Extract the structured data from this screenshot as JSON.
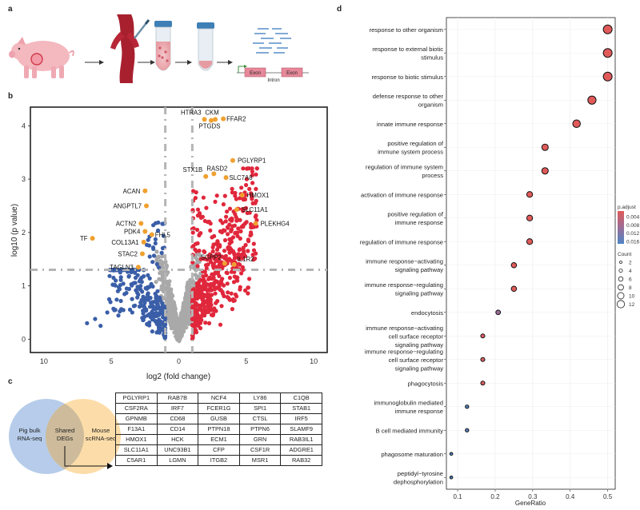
{
  "panels": {
    "a": "a",
    "b": "b",
    "c": "c",
    "d": "d"
  },
  "workflow": {
    "exon_1": "Exon",
    "exon_2": "Exon",
    "intron": "Intron"
  },
  "venn": {
    "left": [
      "Pig bulk",
      "RNA-seq"
    ],
    "right": [
      "Mouse",
      "scRNA-seq"
    ],
    "center": [
      "Shared",
      "DEGs"
    ]
  },
  "gene_table": [
    [
      "PGLYRP1",
      "RAB7B",
      "NCF4",
      "LY86",
      "C1QB"
    ],
    [
      "CSF2RA",
      "IRF7",
      "FCER1G",
      "SPI1",
      "STAB1"
    ],
    [
      "GPNMB",
      "CD68",
      "GUSB",
      "CTSL",
      "IRF5"
    ],
    [
      "F13A1",
      "CD14",
      "PTPN18",
      "PTPN6",
      "SLAMF9"
    ],
    [
      "HMOX1",
      "HCK",
      "ECM1",
      "GRN",
      "RAB3IL1"
    ],
    [
      "SLC11A1",
      "UNC93B1",
      "CFP",
      "CSF1R",
      "ADGRE1"
    ],
    [
      "C5AR1",
      "LGMN",
      "ITGB2",
      "MSR1",
      "RAB32"
    ]
  ],
  "colors": {
    "down": "#3a5ea8",
    "up": "#e0273b",
    "ns": "#a9a9a9",
    "label": "#f0a030",
    "threshold": "#b5b5b5",
    "low_padj": "#e05a5a",
    "high_padj": "#4d85c6"
  },
  "chart_data": [
    {
      "type": "scatter",
      "subtype": "volcano",
      "xlabel": "log2 (fold change)",
      "ylabel": "log10 (p value)",
      "xlim": [
        -11,
        11
      ],
      "ylim": [
        -0.25,
        4.35
      ],
      "xtick_labels": [
        "10",
        "5",
        "0",
        "5",
        "10"
      ],
      "xticks": [
        -10,
        -5,
        0,
        5,
        10
      ],
      "yticks": [
        0,
        1,
        2,
        3,
        4
      ],
      "threshold_x": [
        -1,
        1
      ],
      "threshold_y": 1.3,
      "labeled_genes": [
        {
          "gene": "HTRA3",
          "x": 1.9,
          "y": 4.12
        },
        {
          "gene": "CKM",
          "x": 2.7,
          "y": 4.12
        },
        {
          "gene": "FFAR2",
          "x": 3.3,
          "y": 4.13
        },
        {
          "gene": "PTGDS",
          "x": 2.4,
          "y": 4.1
        },
        {
          "gene": "PGLYRP1",
          "x": 4.0,
          "y": 3.35
        },
        {
          "gene": "STX1B",
          "x": 2.0,
          "y": 3.05
        },
        {
          "gene": "RASD2",
          "x": 2.6,
          "y": 3.1
        },
        {
          "gene": "SLC7A8",
          "x": 3.5,
          "y": 3.03
        },
        {
          "gene": "HMOX1",
          "x": 4.7,
          "y": 2.7
        },
        {
          "gene": "SLC11A1",
          "x": 4.3,
          "y": 2.43
        },
        {
          "gene": "PLEKHG4",
          "x": 5.7,
          "y": 2.17
        },
        {
          "gene": "ACAN",
          "x": -2.5,
          "y": 2.78
        },
        {
          "gene": "ANGPTL7",
          "x": -2.4,
          "y": 2.5
        },
        {
          "gene": "ACTN2",
          "x": -2.8,
          "y": 2.17
        },
        {
          "gene": "PDK4",
          "x": -2.5,
          "y": 2.02
        },
        {
          "gene": "FHL5",
          "x": -2.0,
          "y": 1.96
        },
        {
          "gene": "COL13A1",
          "x": -2.6,
          "y": 1.82
        },
        {
          "gene": "TF",
          "x": -6.4,
          "y": 1.89
        },
        {
          "gene": "STAC2",
          "x": -2.7,
          "y": 1.6
        },
        {
          "gene": "SGPP2",
          "x": 3.4,
          "y": 1.42
        },
        {
          "gene": "IL1R2",
          "x": 4.1,
          "y": 1.4
        },
        {
          "gene": "TAGLN3",
          "x": -3.0,
          "y": 1.35
        }
      ]
    },
    {
      "type": "scatter",
      "subtype": "dotplot",
      "xlabel": "GeneRatio",
      "ylabel": "",
      "xlim": [
        0.07,
        0.52
      ],
      "xticks": [
        0.1,
        0.2,
        0.3,
        0.4,
        0.5
      ],
      "xtick_labels": [
        "0.1",
        "0.2",
        "0.3",
        "0.4",
        "0.5"
      ],
      "terms": [
        {
          "label": [
            "response to other organism"
          ],
          "ratio": 0.5,
          "count": 12,
          "padj": 0.001
        },
        {
          "label": [
            "response to external biotic",
            "stimulus"
          ],
          "ratio": 0.5,
          "count": 12,
          "padj": 0.001
        },
        {
          "label": [
            "response to biotic stimulus"
          ],
          "ratio": 0.5,
          "count": 12,
          "padj": 0.001
        },
        {
          "label": [
            "defense response to other",
            "organism"
          ],
          "ratio": 0.458,
          "count": 11,
          "padj": 0.001
        },
        {
          "label": [
            "innate immune response"
          ],
          "ratio": 0.417,
          "count": 10,
          "padj": 0.001
        },
        {
          "label": [
            "positive regulation of",
            "immune system process"
          ],
          "ratio": 0.333,
          "count": 8,
          "padj": 0.001
        },
        {
          "label": [
            "regulation of immune system",
            "process"
          ],
          "ratio": 0.333,
          "count": 8,
          "padj": 0.001
        },
        {
          "label": [
            "activation of immune response"
          ],
          "ratio": 0.292,
          "count": 7,
          "padj": 0.001
        },
        {
          "label": [
            "positive regulation of",
            "immune response"
          ],
          "ratio": 0.292,
          "count": 7,
          "padj": 0.001
        },
        {
          "label": [
            "regulation of immune response"
          ],
          "ratio": 0.292,
          "count": 7,
          "padj": 0.001
        },
        {
          "label": [
            "immune response−activating",
            "signaling pathway"
          ],
          "ratio": 0.25,
          "count": 6,
          "padj": 0.001
        },
        {
          "label": [
            "immune response−regulating",
            "signaling pathway"
          ],
          "ratio": 0.25,
          "count": 6,
          "padj": 0.001
        },
        {
          "label": [
            "endocytosis"
          ],
          "ratio": 0.208,
          "count": 5,
          "padj": 0.009
        },
        {
          "label": [
            "immune response−activating",
            "cell surface receptor",
            "signaling pathway"
          ],
          "ratio": 0.167,
          "count": 4,
          "padj": 0.002
        },
        {
          "label": [
            "immune response−regulating",
            "cell surface receptor",
            "signaling pathway"
          ],
          "ratio": 0.167,
          "count": 4,
          "padj": 0.002
        },
        {
          "label": [
            "phagocytosis"
          ],
          "ratio": 0.167,
          "count": 4,
          "padj": 0.002
        },
        {
          "label": [
            "immunoglobulin mediated",
            "immune response"
          ],
          "ratio": 0.125,
          "count": 3,
          "padj": 0.016
        },
        {
          "label": [
            "B cell mediated immunity"
          ],
          "ratio": 0.125,
          "count": 3,
          "padj": 0.016
        },
        {
          "label": [
            "phagosome maturation"
          ],
          "ratio": 0.083,
          "count": 2,
          "padj": 0.017
        },
        {
          "label": [
            "peptidyl−tyrosine",
            "dephosphorylation"
          ],
          "ratio": 0.083,
          "count": 2,
          "padj": 0.017
        }
      ],
      "legend_color": {
        "title": "p.adjust",
        "ticks": [
          0.004,
          0.008,
          0.012,
          0.016
        ],
        "tick_labels": [
          "0.004",
          "0.008",
          "0.012",
          "0.016"
        ]
      },
      "legend_size": {
        "title": "Count",
        "values": [
          2,
          4,
          6,
          8,
          10,
          12
        ],
        "labels": [
          "2",
          "4",
          "6",
          "8",
          "10",
          "12"
        ]
      }
    }
  ]
}
